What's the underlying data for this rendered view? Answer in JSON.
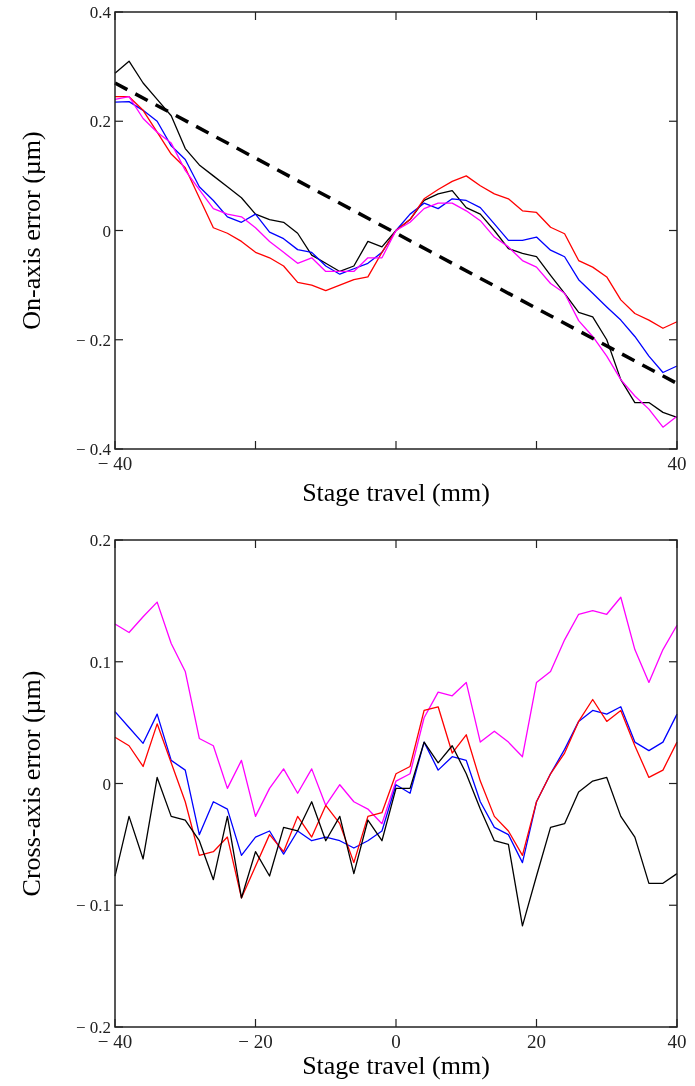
{
  "chart_data": [
    {
      "type": "line",
      "xlabel": "Stage travel (mm)",
      "ylabel": "On-axis error (µm)",
      "xlim": [
        -40,
        40
      ],
      "ylim": [
        -0.4,
        0.4
      ],
      "xticks": [
        {
          "value": -40,
          "label": "− 40"
        },
        {
          "value": -20,
          "label": null
        },
        {
          "value": 0,
          "label": null
        },
        {
          "value": 20,
          "label": null
        },
        40
      ],
      "yticks": [
        {
          "value": -0.4,
          "label": "− 0.4"
        },
        {
          "value": -0.2,
          "label": "− 0.2"
        },
        0,
        0.2,
        0.4
      ],
      "x": [
        -40,
        -38,
        -36,
        -34,
        -32,
        -30,
        -28,
        -26,
        -24,
        -22,
        -20,
        -18,
        -16,
        -14,
        -12,
        -10,
        -8,
        -6,
        -4,
        -2,
        0,
        2,
        4,
        6,
        8,
        10,
        12,
        14,
        16,
        18,
        20,
        22,
        24,
        26,
        28,
        30,
        32,
        34,
        36,
        38,
        40
      ],
      "series": [
        {
          "color": "#000000",
          "values": [
            0.288,
            0.31,
            0.27,
            0.24,
            0.21,
            0.15,
            0.12,
            0.1,
            0.08,
            0.06,
            0.03,
            0.02,
            0.015,
            -0.005,
            -0.045,
            -0.06,
            -0.075,
            -0.065,
            -0.02,
            -0.03,
            0,
            0.02,
            0.055,
            0.067,
            0.073,
            0.042,
            0.03,
            0,
            -0.033,
            -0.042,
            -0.048,
            -0.082,
            -0.115,
            -0.15,
            -0.158,
            -0.2,
            -0.273,
            -0.315,
            -0.315,
            -0.333,
            -0.342
          ]
        },
        {
          "color": "#0000ff",
          "values": [
            0.235,
            0.236,
            0.22,
            0.2,
            0.155,
            0.13,
            0.08,
            0.055,
            0.025,
            0.015,
            0.03,
            -0.003,
            -0.015,
            -0.035,
            -0.04,
            -0.065,
            -0.08,
            -0.07,
            -0.06,
            -0.04,
            0,
            0.03,
            0.05,
            0.04,
            0.058,
            0.055,
            0.042,
            0.012,
            -0.018,
            -0.018,
            -0.012,
            -0.036,
            -0.048,
            -0.09,
            -0.115,
            -0.14,
            -0.164,
            -0.194,
            -0.23,
            -0.26,
            -0.248
          ]
        },
        {
          "color": "#ff0000",
          "values": [
            0.245,
            0.245,
            0.22,
            0.18,
            0.14,
            0.115,
            0.06,
            0.005,
            -0.005,
            -0.02,
            -0.04,
            -0.05,
            -0.065,
            -0.095,
            -0.1,
            -0.11,
            -0.1,
            -0.09,
            -0.085,
            -0.04,
            0,
            0.02,
            0.058,
            0.075,
            0.09,
            0.1,
            0.082,
            0.067,
            0.058,
            0.036,
            0.033,
            0.006,
            -0.006,
            -0.055,
            -0.067,
            -0.085,
            -0.127,
            -0.152,
            -0.164,
            -0.179,
            -0.167
          ]
        },
        {
          "color": "#ff00ff",
          "values": [
            0.24,
            0.245,
            0.205,
            0.18,
            0.16,
            0.11,
            0.075,
            0.04,
            0.03,
            0.025,
            0.005,
            -0.02,
            -0.04,
            -0.06,
            -0.05,
            -0.075,
            -0.075,
            -0.075,
            -0.05,
            -0.05,
            0,
            0.015,
            0.04,
            0.05,
            0.05,
            0.036,
            0.018,
            -0.012,
            -0.03,
            -0.055,
            -0.067,
            -0.097,
            -0.115,
            -0.165,
            -0.194,
            -0.23,
            -0.273,
            -0.303,
            -0.327,
            -0.36,
            -0.34
          ]
        },
        {
          "type": "line",
          "x": [
            -40,
            40
          ],
          "values": [
            0.27,
            -0.28
          ],
          "color": "#000000",
          "line_style": "dashed"
        }
      ]
    },
    {
      "type": "line",
      "xlabel": "Stage travel (mm)",
      "ylabel": "Cross-axis error (µm)",
      "xlim": [
        -40,
        40
      ],
      "ylim": [
        -0.2,
        0.2
      ],
      "xticks": [
        {
          "value": -40,
          "label": "− 40"
        },
        {
          "value": -20,
          "label": "− 20"
        },
        0,
        20,
        40
      ],
      "yticks": [
        {
          "value": -0.2,
          "label": "− 0.2"
        },
        {
          "value": -0.1,
          "label": "− 0.1"
        },
        0,
        0.1,
        0.2
      ],
      "x": [
        -40,
        -38,
        -36,
        -34,
        -32,
        -30,
        -28,
        -26,
        -24,
        -22,
        -20,
        -18,
        -16,
        -14,
        -12,
        -10,
        -8,
        -6,
        -4,
        -2,
        0,
        2,
        4,
        6,
        8,
        10,
        12,
        14,
        16,
        18,
        20,
        22,
        24,
        26,
        28,
        30,
        32,
        34,
        36,
        38,
        40
      ],
      "series": [
        {
          "color": "#ff00ff",
          "values": [
            0.131,
            0.124,
            0.137,
            0.149,
            0.115,
            0.092,
            0.037,
            0.031,
            -0.004,
            0.019,
            -0.027,
            -0.004,
            0.012,
            -0.008,
            0.012,
            -0.018,
            -0.001,
            -0.015,
            -0.021,
            -0.033,
            0.002,
            0.008,
            0.054,
            0.075,
            0.072,
            0.083,
            0.034,
            0.043,
            0.034,
            0.022,
            0.083,
            0.092,
            0.118,
            0.139,
            0.142,
            0.139,
            0.153,
            0.11,
            0.083,
            0.11,
            0.13
          ]
        },
        {
          "color": "#0000ff",
          "values": [
            0.059,
            0.046,
            0.033,
            0.057,
            0.019,
            0.011,
            -0.042,
            -0.015,
            -0.021,
            -0.059,
            -0.044,
            -0.039,
            -0.058,
            -0.039,
            -0.047,
            -0.044,
            -0.047,
            -0.053,
            -0.047,
            -0.039,
            -0.001,
            -0.008,
            0.034,
            0.011,
            0.022,
            0.019,
            -0.015,
            -0.036,
            -0.042,
            -0.065,
            -0.015,
            0.008,
            0.028,
            0.051,
            0.06,
            0.057,
            0.063,
            0.034,
            0.027,
            0.034,
            0.057
          ]
        },
        {
          "color": "#ff0000",
          "values": [
            0.038,
            0.031,
            0.014,
            0.049,
            0.017,
            -0.015,
            -0.059,
            -0.056,
            -0.044,
            -0.094,
            -0.068,
            -0.042,
            -0.056,
            -0.027,
            -0.044,
            -0.018,
            -0.033,
            -0.065,
            -0.027,
            -0.024,
            0.008,
            0.014,
            0.06,
            0.063,
            0.025,
            0.04,
            0.002,
            -0.027,
            -0.039,
            -0.059,
            -0.015,
            0.008,
            0.025,
            0.051,
            0.069,
            0.051,
            0.06,
            0.031,
            0.005,
            0.011,
            0.034
          ]
        },
        {
          "color": "#000000",
          "values": [
            -0.076,
            -0.027,
            -0.062,
            0.005,
            -0.027,
            -0.03,
            -0.047,
            -0.079,
            -0.027,
            -0.094,
            -0.056,
            -0.076,
            -0.036,
            -0.039,
            -0.015,
            -0.047,
            -0.027,
            -0.074,
            -0.03,
            -0.047,
            -0.004,
            -0.004,
            0.034,
            0.017,
            0.031,
            0.008,
            -0.021,
            -0.047,
            -0.05,
            -0.117,
            -0.076,
            -0.036,
            -0.033,
            -0.007,
            0.002,
            0.005,
            -0.027,
            -0.044,
            -0.082,
            -0.082,
            -0.074
          ]
        }
      ]
    }
  ]
}
